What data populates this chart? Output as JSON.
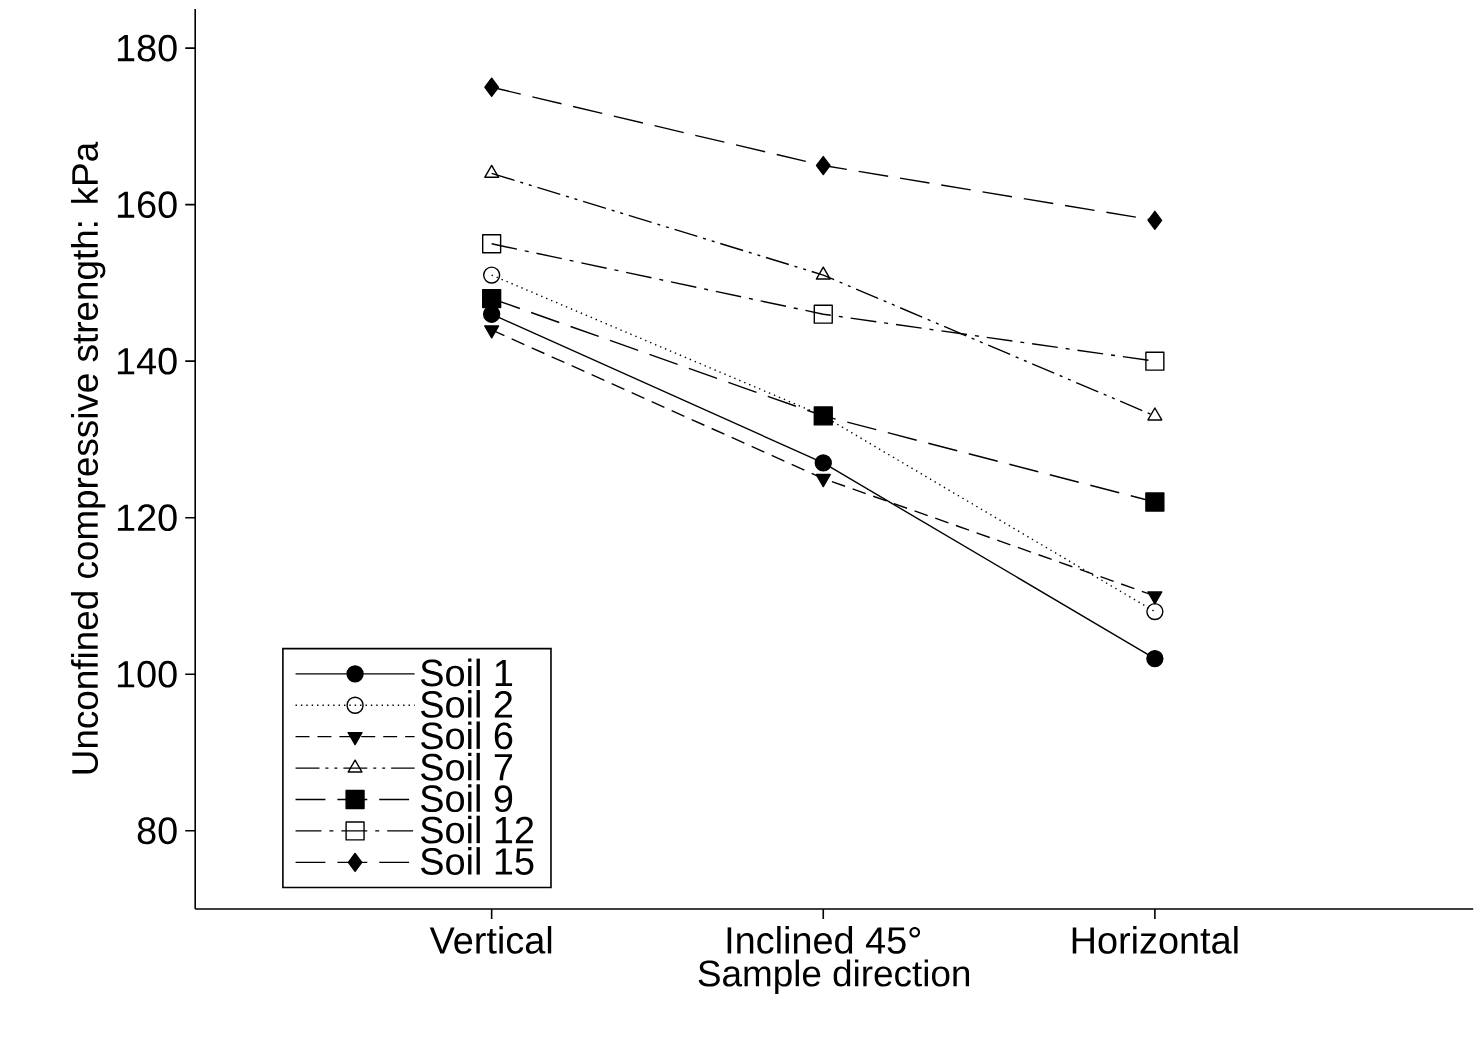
{
  "chart_data": {
    "type": "line",
    "xlabel": "Sample direction",
    "ylabel": "Unconfined compressive strength: kPa",
    "categories": [
      "Vertical",
      "Inclined 45°",
      "Horizontal"
    ],
    "ylim": [
      70,
      185
    ],
    "yticks": [
      80,
      100,
      120,
      140,
      160,
      180
    ],
    "grid": false,
    "legend": "bottom left",
    "series": [
      {
        "name": "Soil 1",
        "color": "#000000",
        "marker": "circle",
        "line_style": "solid",
        "values": [
          146,
          127,
          102
        ]
      },
      {
        "name": "Soil 2",
        "color": "#000000",
        "marker": "circle-open",
        "line_style": "dotted",
        "values": [
          151,
          133,
          108
        ]
      },
      {
        "name": "Soil 6",
        "color": "#000000",
        "marker": "triangle-down",
        "line_style": "dashed",
        "values": [
          144,
          125,
          110
        ]
      },
      {
        "name": "Soil 7",
        "color": "#000000",
        "marker": "triangle-open",
        "line_style": "dashdotdot",
        "values": [
          164,
          151,
          133
        ]
      },
      {
        "name": "Soil 9",
        "color": "#000000",
        "marker": "square",
        "line_style": "longdash",
        "values": [
          148,
          133,
          122
        ]
      },
      {
        "name": "Soil 12",
        "color": "#000000",
        "marker": "square-open",
        "line_style": "dashdot",
        "values": [
          155,
          146,
          140
        ]
      },
      {
        "name": "Soil 15",
        "color": "#000000",
        "marker": "diamond",
        "line_style": "longdash",
        "values": [
          175,
          165,
          158
        ]
      }
    ]
  }
}
